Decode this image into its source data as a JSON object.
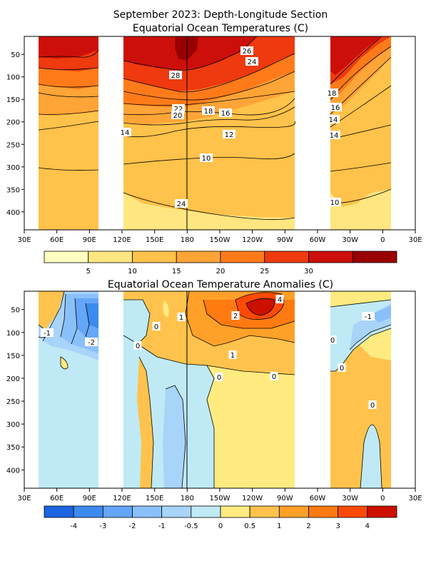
{
  "figure": {
    "title_line1": "September 2023: Depth-Longitude Section",
    "title_line2": "Equatorial Ocean Temperatures (C)",
    "title_bottom": "Equatorial Ocean Temperature Anomalies (C)"
  },
  "chart_data": [
    {
      "type": "heatmap",
      "title": "September 2023: Depth-Longitude Section — Equatorial Ocean Temperatures (C)",
      "x_tick_labels": [
        "30E",
        "60E",
        "90E",
        "120E",
        "150E",
        "180",
        "150W",
        "120W",
        "90W",
        "60W",
        "30W",
        "0",
        "30E"
      ],
      "x_ticks_deg_east": [
        30,
        60,
        90,
        120,
        150,
        180,
        210,
        240,
        270,
        300,
        330,
        360,
        390
      ],
      "xlim_deg_east": [
        30,
        390
      ],
      "y_tick_labels": [
        "50",
        "100",
        "150",
        "200",
        "250",
        "300",
        "350",
        "400"
      ],
      "y_ticks_m": [
        50,
        100,
        150,
        200,
        250,
        300,
        350,
        400
      ],
      "ylim_m": [
        440,
        10
      ],
      "y_inverted": true,
      "land_gaps_deg_east": [
        [
          100,
          120
        ],
        [
          280,
          302
        ],
        [
          365,
          390
        ],
        [
          30,
          42
        ]
      ],
      "contour_interval_C": 2,
      "contour_labels": [
        "26",
        "24",
        "28",
        "22",
        "20",
        "18",
        "16",
        "14",
        "12",
        "10",
        "24",
        "18",
        "16",
        "14",
        "10",
        "14"
      ],
      "colorbar": {
        "tick_labels": [
          "5",
          "10",
          "15",
          "20",
          "25",
          "30"
        ],
        "colors": [
          "#ffffc0",
          "#ffe680",
          "#ffc24a",
          "#ffa436",
          "#ff7b1a",
          "#ee3a0e",
          "#cc0f0a",
          "#990000"
        ]
      }
    },
    {
      "type": "heatmap",
      "title": "Equatorial Ocean Temperature Anomalies (C)",
      "x_tick_labels": [
        "30E",
        "60E",
        "90E",
        "120E",
        "150E",
        "180",
        "150W",
        "120W",
        "90W",
        "60W",
        "30W",
        "0",
        "30E"
      ],
      "x_ticks_deg_east": [
        30,
        60,
        90,
        120,
        150,
        180,
        210,
        240,
        270,
        300,
        330,
        360,
        390
      ],
      "xlim_deg_east": [
        30,
        390
      ],
      "y_tick_labels": [
        "50",
        "100",
        "150",
        "200",
        "250",
        "300",
        "350",
        "400"
      ],
      "y_ticks_m": [
        50,
        100,
        150,
        200,
        250,
        300,
        350,
        400
      ],
      "ylim_m": [
        440,
        10
      ],
      "y_inverted": true,
      "contour_labels": [
        "-1",
        "-2",
        "0",
        "0",
        "1",
        "2",
        "4",
        "1",
        "0",
        "0",
        "-1",
        "0",
        "0",
        "0"
      ],
      "colorbar": {
        "tick_labels": [
          "-4",
          "-3",
          "-2",
          "-1",
          "-0.5",
          "0",
          "0.5",
          "1",
          "2",
          "3",
          "4"
        ],
        "colors": [
          "#1c64e0",
          "#3c8af0",
          "#64a6f8",
          "#8ac0fa",
          "#a8d4fa",
          "#bfeaf5",
          "#ffeb80",
          "#ffc34d",
          "#ffa129",
          "#ff7a10",
          "#ff4a05",
          "#cc1000"
        ]
      }
    }
  ]
}
